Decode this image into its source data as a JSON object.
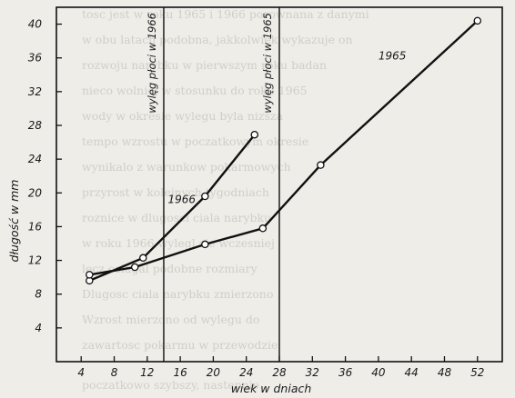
{
  "chart_data": {
    "type": "line",
    "title": "",
    "xlabel": "wiek w dniach",
    "ylabel": "długość w mm",
    "xlim": [
      1,
      55
    ],
    "ylim": [
      0,
      42
    ],
    "xticks": [
      4,
      8,
      12,
      16,
      20,
      24,
      28,
      32,
      36,
      40,
      44,
      48,
      52
    ],
    "yticks": [
      4,
      8,
      12,
      16,
      20,
      24,
      28,
      32,
      36,
      40
    ],
    "grid": false,
    "colors": {
      "line": "#111111",
      "marker_fill": "#ffffff",
      "background": "#efede8"
    },
    "series": [
      {
        "name": "1966",
        "marker": "open-circle",
        "points": [
          [
            5,
            9.6
          ],
          [
            11.5,
            12.3
          ],
          [
            19,
            19.6
          ],
          [
            25,
            26.9
          ]
        ]
      },
      {
        "name": "1965",
        "marker": "open-circle",
        "points": [
          [
            5,
            10.3
          ],
          [
            10.5,
            11.2
          ],
          [
            19,
            13.9
          ],
          [
            26,
            15.8
          ],
          [
            33,
            23.3
          ],
          [
            52,
            40.4
          ]
        ]
      }
    ],
    "annotations": [
      {
        "text": "wylęg płoci w 1966",
        "x": 14,
        "kind": "vertical-line"
      },
      {
        "text": "wylęg płoci w 1965",
        "x": 28,
        "kind": "vertical-line"
      }
    ]
  }
}
